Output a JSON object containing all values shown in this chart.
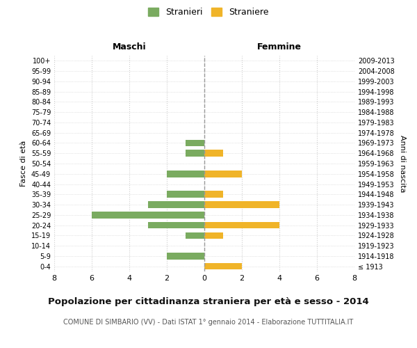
{
  "age_groups": [
    "100+",
    "95-99",
    "90-94",
    "85-89",
    "80-84",
    "75-79",
    "70-74",
    "65-69",
    "60-64",
    "55-59",
    "50-54",
    "45-49",
    "40-44",
    "35-39",
    "30-34",
    "25-29",
    "20-24",
    "15-19",
    "10-14",
    "5-9",
    "0-4"
  ],
  "birth_years": [
    "≤ 1913",
    "1914-1918",
    "1919-1923",
    "1924-1928",
    "1929-1933",
    "1934-1938",
    "1939-1943",
    "1944-1948",
    "1949-1953",
    "1954-1958",
    "1959-1963",
    "1964-1968",
    "1969-1973",
    "1974-1978",
    "1979-1983",
    "1984-1988",
    "1989-1993",
    "1994-1998",
    "1999-2003",
    "2004-2008",
    "2009-2013"
  ],
  "maschi": [
    0,
    0,
    0,
    0,
    0,
    0,
    0,
    0,
    1,
    1,
    0,
    2,
    0,
    2,
    3,
    6,
    3,
    1,
    0,
    2,
    0
  ],
  "femmine": [
    0,
    0,
    0,
    0,
    0,
    0,
    0,
    0,
    0,
    1,
    0,
    2,
    0,
    1,
    4,
    0,
    4,
    1,
    0,
    0,
    2
  ],
  "color_maschi": "#7aab60",
  "color_femmine": "#f0b429",
  "title": "Popolazione per cittadinanza straniera per età e sesso - 2014",
  "subtitle": "COMUNE DI SIMBARIO (VV) - Dati ISTAT 1° gennaio 2014 - Elaborazione TUTTITALIA.IT",
  "ylabel_left": "Fasce di età",
  "ylabel_right": "Anni di nascita",
  "label_maschi": "Maschi",
  "label_femmine": "Femmine",
  "legend_stranieri": "Stranieri",
  "legend_straniere": "Straniere",
  "xlim": 8,
  "background_color": "#ffffff",
  "grid_color": "#cccccc",
  "grid_linestyle": "dotted"
}
